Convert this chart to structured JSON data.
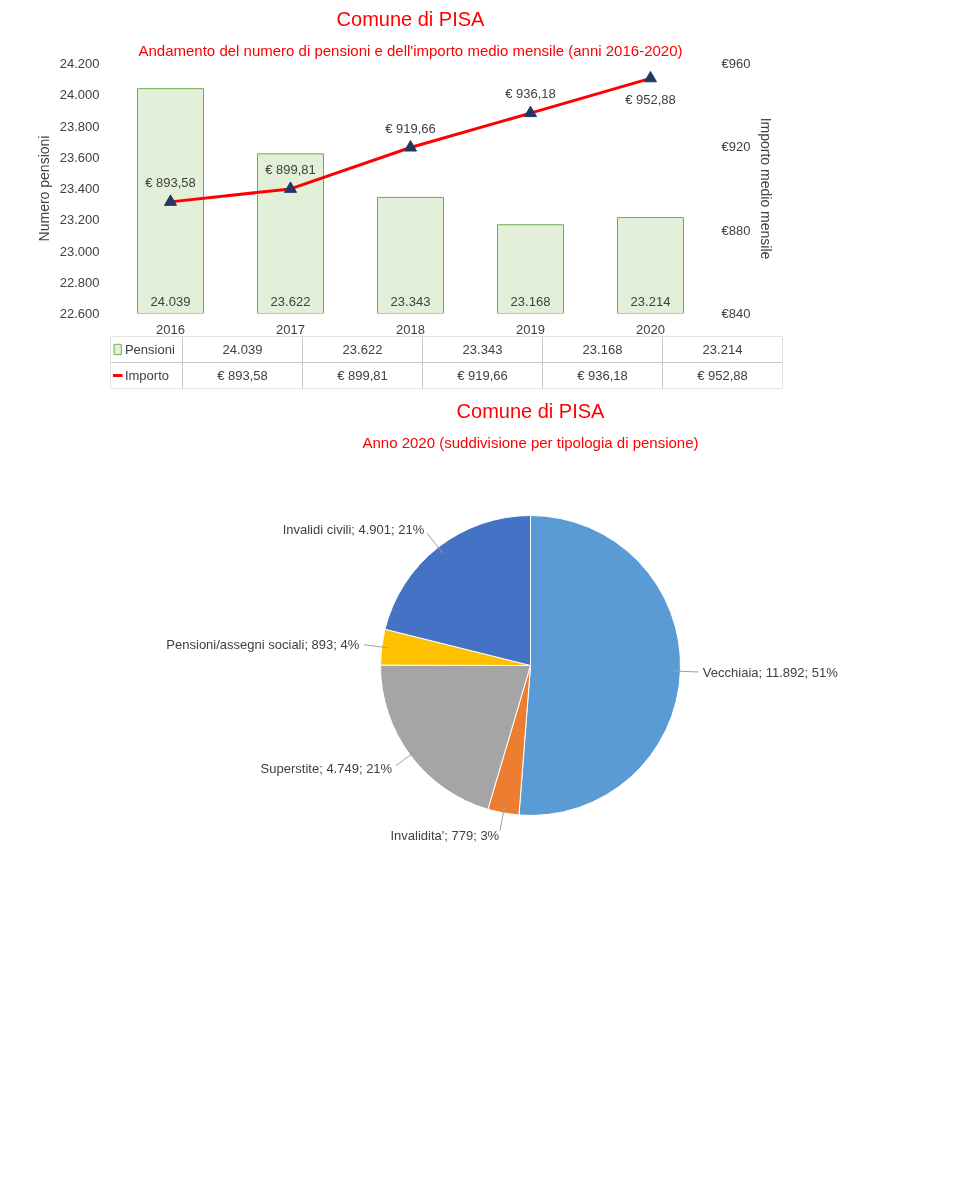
{
  "chart_data": [
    {
      "type": "bar",
      "title": "Comune di PISA",
      "subtitle": "Andamento del numero di pensioni e dell'importo medio mensile (anni 2016-2020)",
      "ylabel": "Numero pensioni",
      "y2label": "Importo medio mensile",
      "categories": [
        "2016",
        "2017",
        "2018",
        "2019",
        "2020"
      ],
      "ylim": [
        22600,
        24200
      ],
      "yticks": [
        {
          "value": 22600,
          "label": "22.600"
        },
        {
          "value": 22800,
          "label": "22.800"
        },
        {
          "value": 23000,
          "label": "23.000"
        },
        {
          "value": 23200,
          "label": "23.200"
        },
        {
          "value": 23400,
          "label": "23.400"
        },
        {
          "value": 23600,
          "label": "23.600"
        },
        {
          "value": 23800,
          "label": "23.800"
        },
        {
          "value": 24000,
          "label": "24.000"
        },
        {
          "value": 24200,
          "label": "24.200"
        }
      ],
      "y2lim": [
        840,
        960
      ],
      "y2ticks": [
        {
          "value": 840,
          "label": "€840"
        },
        {
          "value": 880,
          "label": "€880"
        },
        {
          "value": 920,
          "label": "€920"
        },
        {
          "value": 960,
          "label": "€960"
        }
      ],
      "marker": "triangle",
      "grid": false,
      "legend": "bottom",
      "series": [
        {
          "name": "Pensioni",
          "type": "bar",
          "color": "#e2f0d9",
          "values": [
            24039,
            23622,
            23343,
            23168,
            23214
          ],
          "value_labels": [
            "24.039",
            "23.622",
            "23.343",
            "23.168",
            "23.214"
          ]
        },
        {
          "name": "Importo",
          "type": "line",
          "axis": "y2",
          "color": "#ff0000",
          "values": [
            893.58,
            899.81,
            919.66,
            936.18,
            952.88
          ],
          "value_labels": [
            "€ 893,58",
            "€ 899,81",
            "€ 919,66",
            "€ 936,18",
            "€ 952,88"
          ]
        }
      ]
    },
    {
      "type": "pie",
      "title": "Comune di PISA",
      "subtitle": "Anno 2020 (suddivisione per tipologia di pensione)",
      "categories": [
        "Vecchiaia",
        "Invalidita'",
        "Superstite",
        "Pensioni/assegni sociali",
        "Invalidi civili"
      ],
      "values": [
        11892,
        779,
        4749,
        893,
        4901
      ],
      "value_labels": [
        "11.892; 51%",
        "779; 3%",
        "4.749; 21%",
        "893; 4%",
        "4.901; 21%"
      ],
      "colors": [
        "#5b9bd5",
        "#ed7d31",
        "#a5a5a5",
        "#ffc000",
        "#4472c4"
      ]
    }
  ]
}
